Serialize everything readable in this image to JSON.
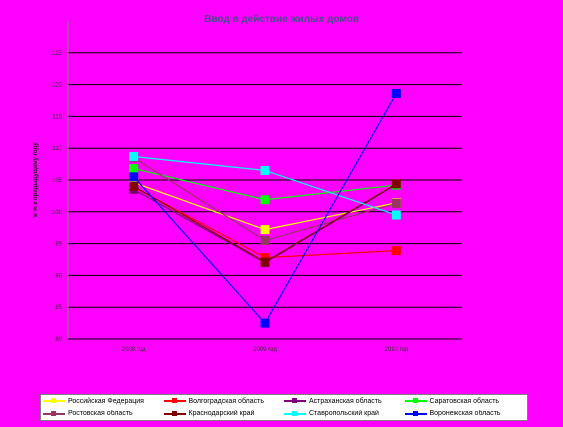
{
  "chart_data": {
    "type": "line",
    "title": "Ввод в действие жилых домов",
    "xlabel": "",
    "ylabel": "в % к предыдущему году",
    "categories": [
      "2008 год",
      "2009 год",
      "2010 год"
    ],
    "ylim": [
      80,
      130
    ],
    "yticks": [
      80,
      85,
      90,
      95,
      100,
      105,
      110,
      115,
      120,
      125
    ],
    "grid": "horizontal",
    "legend_position": "bottom",
    "series": [
      {
        "name": "Российская Федерация",
        "color": "#ffff00",
        "values": [
          104.6,
          97.2,
          101.4
        ]
      },
      {
        "name": "Волгоградская область",
        "color": "#ff0000",
        "values": [
          103.9,
          92.8,
          93.9
        ]
      },
      {
        "name": "Астраханская область",
        "color": "#800080",
        "values": [
          103.5,
          92.0,
          104.3
        ]
      },
      {
        "name": "Саратовская область",
        "color": "#00ff00",
        "values": [
          106.8,
          101.9,
          104.2
        ]
      },
      {
        "name": "Ростовская область",
        "color": "#993366",
        "values": [
          108.5,
          95.5,
          101.3
        ]
      },
      {
        "name": "Краснодарский край",
        "color": "#800000",
        "values": [
          104.0,
          92.1,
          104.4
        ]
      },
      {
        "name": "Ставропольский край",
        "color": "#00ffff",
        "values": [
          108.7,
          106.5,
          99.5
        ]
      },
      {
        "name": "Воронежская область",
        "color": "#0000ff",
        "values": [
          105.5,
          82.5,
          118.6
        ]
      }
    ]
  }
}
